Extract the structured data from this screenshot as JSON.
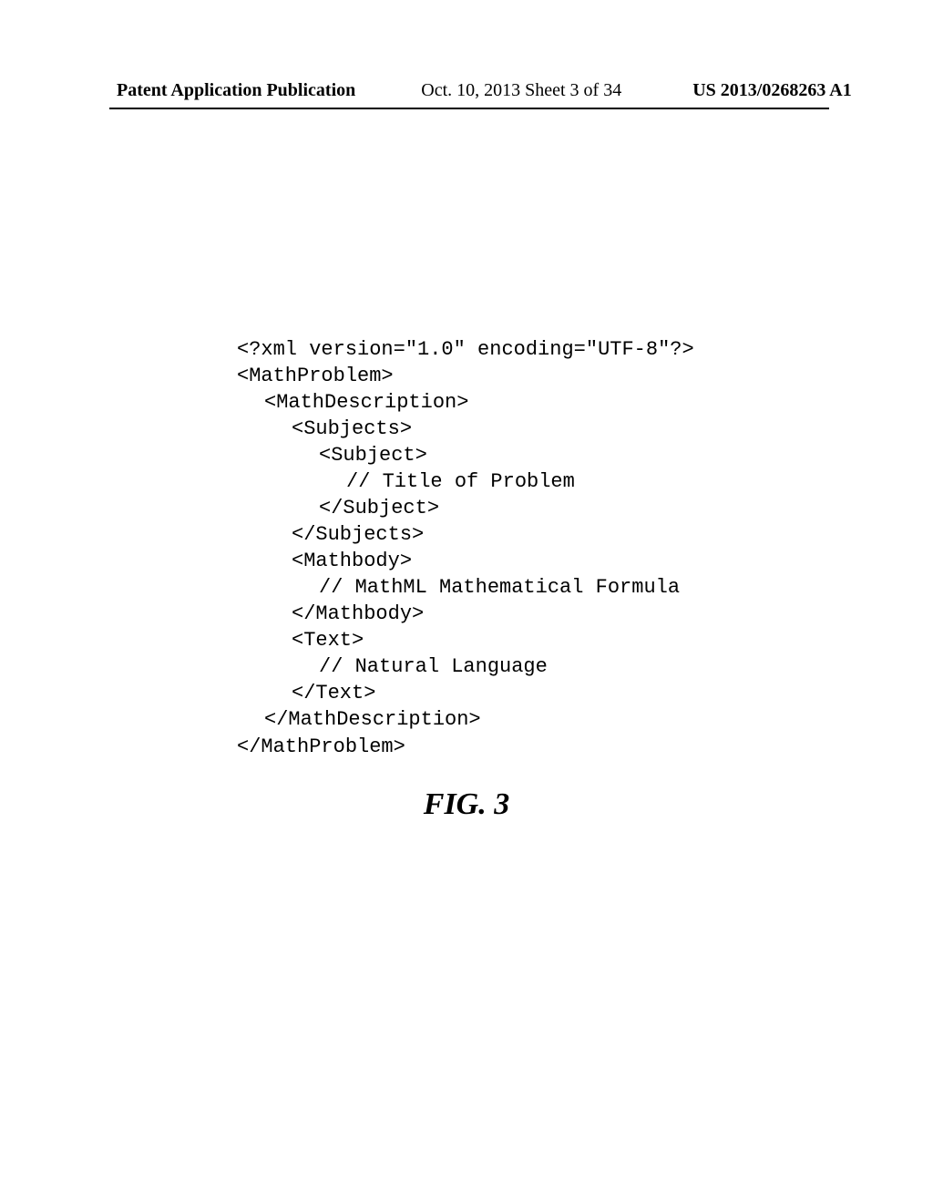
{
  "header": {
    "left": "Patent Application Publication",
    "middle": "Oct. 10, 2013  Sheet 3 of 34",
    "right": "US 2013/0268263 A1"
  },
  "code": {
    "l01": "<?xml version=\"1.0\" encoding=\"UTF-8\"?>",
    "l02": "<MathProblem>",
    "l03": "<MathDescription>",
    "l04": "<Subjects>",
    "l05": "<Subject>",
    "l06": "// Title of Problem",
    "l07": "</Subject>",
    "l08": "</Subjects>",
    "l09": "<Mathbody>",
    "l10": "// MathML Mathematical Formula",
    "l11": "</Mathbody>",
    "l12": "<Text>",
    "l13": "// Natural Language",
    "l14": "</Text>",
    "l15": "</MathDescription>",
    "l16": "</MathProblem>"
  },
  "figure_label": "FIG. 3"
}
